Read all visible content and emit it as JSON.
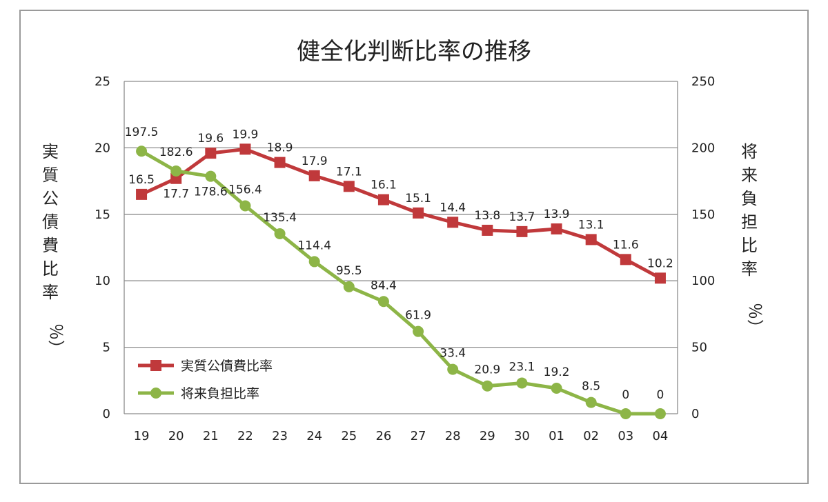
{
  "chart_data": {
    "type": "line",
    "title": "健全化判断比率の推移",
    "categories": [
      "19",
      "20",
      "21",
      "22",
      "23",
      "24",
      "25",
      "26",
      "27",
      "28",
      "29",
      "30",
      "01",
      "02",
      "03",
      "04"
    ],
    "y_left": {
      "label": "実質公債費比率（％）",
      "label_chars": [
        "実",
        "質",
        "公",
        "債",
        "費",
        "比",
        "率",
        "％）"
      ],
      "ylim": [
        0,
        25
      ],
      "ticks": [
        "0",
        "5",
        "10",
        "15",
        "20",
        "25"
      ]
    },
    "y_right": {
      "label": "将来負担比率（％）",
      "label_chars": [
        "将",
        "来",
        "負",
        "担",
        "比",
        "率",
        "％）"
      ],
      "ylim": [
        0,
        250
      ],
      "ticks": [
        "0",
        "50",
        "100",
        "150",
        "200",
        "250"
      ]
    },
    "grid": true,
    "legend_position": "bottom-left",
    "series": [
      {
        "name": "実質公債費比率",
        "axis": "left",
        "color": "#c0393b",
        "marker": "square",
        "values": [
          16.5,
          17.7,
          19.6,
          19.9,
          18.9,
          17.9,
          17.1,
          16.1,
          15.1,
          14.4,
          13.8,
          13.7,
          13.9,
          13.1,
          11.6,
          10.2
        ],
        "labels": [
          "16.5",
          "17.7",
          "19.6",
          "19.9",
          "18.9",
          "17.9",
          "17.1",
          "16.1",
          "15.1",
          "14.4",
          "13.8",
          "13.7",
          "13.9",
          "13.1",
          "11.6",
          "10.2"
        ]
      },
      {
        "name": "将来負担比率",
        "axis": "right",
        "color": "#8db547",
        "marker": "circle",
        "values": [
          197.5,
          182.6,
          178.6,
          156.4,
          135.4,
          114.4,
          95.5,
          84.4,
          61.9,
          33.4,
          20.9,
          23.1,
          19.2,
          8.5,
          0,
          0
        ],
        "labels": [
          "197.5",
          "182.6",
          "178.6",
          "156.4",
          "135.4",
          "114.4",
          "95.5",
          "84.4",
          "61.9",
          "33.4",
          "20.9",
          "23.1",
          "19.2",
          "8.5",
          "0",
          "0"
        ]
      }
    ]
  }
}
